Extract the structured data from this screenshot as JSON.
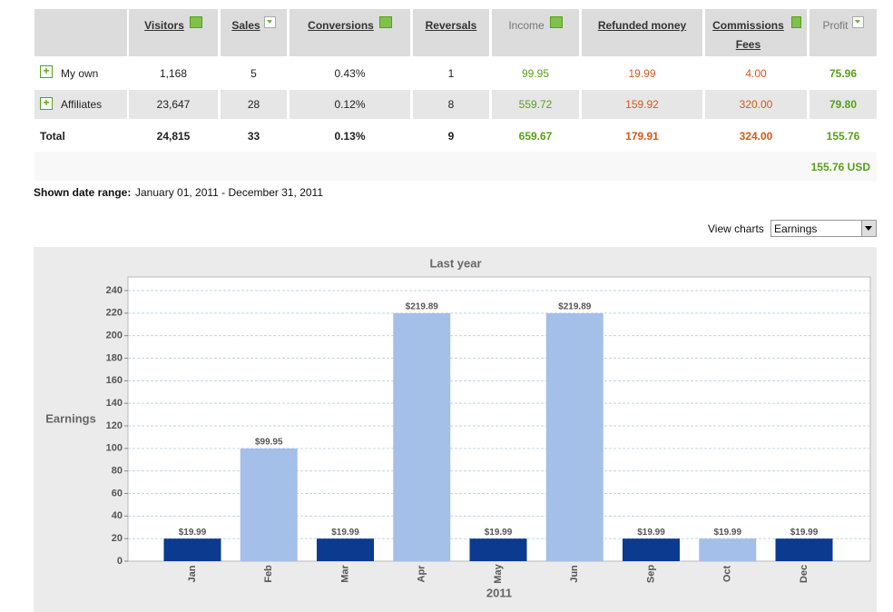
{
  "table": {
    "headers": [
      "Visitors",
      "Sales",
      "Conversions",
      "Reversals",
      "Income",
      "Refunded money",
      "Commissions Fees",
      "Profit"
    ],
    "rows": [
      [
        "My own",
        "1,168",
        "5",
        "0.43%",
        "1",
        "99.95",
        "19.99",
        "4.00",
        "75.96"
      ],
      [
        "Affiliates",
        "23,647",
        "28",
        "0.12%",
        "8",
        "559.72",
        "159.92",
        "320.00",
        "79.80"
      ],
      [
        "Total",
        "24,815",
        "33",
        "0.13%",
        "9",
        "659.67",
        "179.91",
        "324.00",
        "155.76"
      ]
    ],
    "grand_total": "155.76 USD"
  },
  "date_range": {
    "label": "Shown date range:",
    "value": "January 01, 2011 - December 31, 2011"
  },
  "view_charts": {
    "label": "View charts",
    "selected": "Earnings"
  },
  "chart_data": {
    "type": "bar",
    "title": "Last year",
    "y_label": "Earnings",
    "x_label": "2011",
    "categories": [
      "Jan",
      "Feb",
      "Mar",
      "Apr",
      "May",
      "Jun",
      "Sep",
      "Oct",
      "Dec"
    ],
    "values": [
      19.99,
      99.95,
      19.99,
      219.89,
      19.99,
      219.89,
      19.99,
      19.99,
      19.99
    ],
    "value_labels": [
      "$19.99",
      "$99.95",
      "$19.99",
      "$219.89",
      "$19.99",
      "$219.89",
      "$19.99",
      "$19.99",
      "$19.99"
    ],
    "colors": [
      "#0b3a8f",
      "#a4bfe8",
      "#0b3a8f",
      "#a4bfe8",
      "#0b3a8f",
      "#a4bfe8",
      "#0b3a8f",
      "#a4bfe8",
      "#0b3a8f"
    ],
    "ylim": [
      0,
      250
    ],
    "yticks": [
      0,
      20,
      40,
      60,
      80,
      100,
      120,
      140,
      160,
      180,
      200,
      220,
      240
    ],
    "grid": true
  }
}
